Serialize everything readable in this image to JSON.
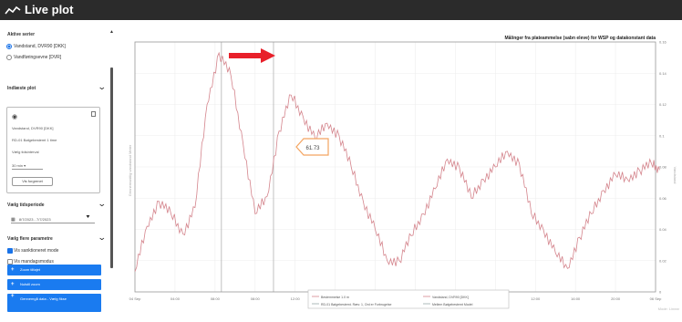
{
  "window": {
    "title": "Live plot",
    "icon": "line-chart-icon"
  },
  "sidebar": {
    "active_series": {
      "title": "Aktive serier",
      "options": [
        {
          "label": "Vandstand, DVR90 [DKK]",
          "selected": true
        },
        {
          "label": "Vandføringsevne [DVR]",
          "selected": false
        }
      ]
    },
    "indlaest_plot": {
      "title": "Indlæste plot",
      "card": {
        "lines": [
          "Vandstand, DVR90 [DKK]",
          "RD-01 Bølgebestemt 1 time",
          "Vælg tidsinterval"
        ],
        "select_value": "30 min",
        "button_label": "Vis forgrenet"
      }
    },
    "vaelg_tidsperiode": {
      "title": "Vælg tidsperiode",
      "date_range": "8/7/2023 - 7/7/2023"
    },
    "vaelg_flere_parametre": {
      "title": "Vælg flere parametre",
      "checkboxes": [
        {
          "label": "Vis sanktioneret mode",
          "checked": true
        },
        {
          "label": "Vis mandagsmodus",
          "checked": false
        }
      ],
      "buttons": [
        "Zoom tilføjet",
        "Nulstil zoom",
        "Gennemgå data - Vælg fikse"
      ]
    }
  },
  "chart": {
    "title": "Målinger fra plateammelse (sabn eleve) for WSP og datakonstant data",
    "ylabel_left": "Gennemsnitlig vandstand Meter",
    "ylabel_right": "Vandstand",
    "marker_label": "61.73",
    "legend": [
      "Bestemmelse 1.0 m",
      "Vandstand, DVR90 [DKK]",
      "RD-01 Bølgebestemt. Ræs: 1, Ord er Forbrugelse",
      "Mellem Bølgebestemt Model"
    ],
    "mode_label": "Mode: Linear",
    "arrow_color": "#e8202a",
    "callout_color": "#f4a460",
    "line_color": "#d4848c"
  },
  "chart_data": {
    "type": "line",
    "title": "Målinger fra plateammelse (sabn eleve) for WSP og datakonstant data",
    "xlabel": "",
    "ylabel": "Gennemsnitlig vandstand Meter",
    "x_ticks": [
      "04 Sep",
      "04:00",
      "08:00",
      "08:00",
      "12:00",
      "16:00",
      "20:00",
      "05 Sep",
      "04:00",
      "08:00",
      "12:00",
      "16:00",
      "20:00",
      "06 Sep"
    ],
    "y_ticks": [
      "0",
      "0.02",
      "0.04",
      "0.06",
      "0.08",
      "0.1",
      "0.12",
      "0.14",
      "0.16"
    ],
    "ylim": [
      0,
      0.16
    ],
    "grid": true,
    "series": [
      {
        "name": "Vandstand, DVR90 [DKK]",
        "x": [
          0,
          0.3,
          0.6,
          0.9,
          1.2,
          1.5,
          1.8,
          2.1,
          2.4,
          2.7,
          3.0,
          3.3,
          3.6,
          3.9,
          4.2,
          4.5,
          4.8,
          5.1,
          5.4,
          5.7,
          6.0,
          6.3,
          6.6,
          6.9,
          7.2,
          7.5,
          7.8,
          8.1,
          8.4,
          8.7,
          9.0,
          9.3,
          9.6,
          9.9,
          10.2,
          10.5,
          10.8,
          11.1,
          11.4,
          11.7,
          12.0,
          12.3,
          12.6,
          12.9,
          13.1
        ],
        "y": [
          0.013,
          0.042,
          0.058,
          0.05,
          0.037,
          0.054,
          0.12,
          0.153,
          0.138,
          0.095,
          0.05,
          0.061,
          0.103,
          0.126,
          0.112,
          0.098,
          0.108,
          0.1,
          0.08,
          0.058,
          0.04,
          0.02,
          0.02,
          0.036,
          0.05,
          0.066,
          0.085,
          0.08,
          0.06,
          0.072,
          0.08,
          0.09,
          0.082,
          0.05,
          0.04,
          0.025,
          0.015,
          0.035,
          0.05,
          0.065,
          0.075,
          0.072,
          0.078,
          0.082,
          0.078
        ]
      }
    ],
    "vertical_markers": [
      2.16,
      3.46
    ],
    "legend_position": "bottom"
  }
}
